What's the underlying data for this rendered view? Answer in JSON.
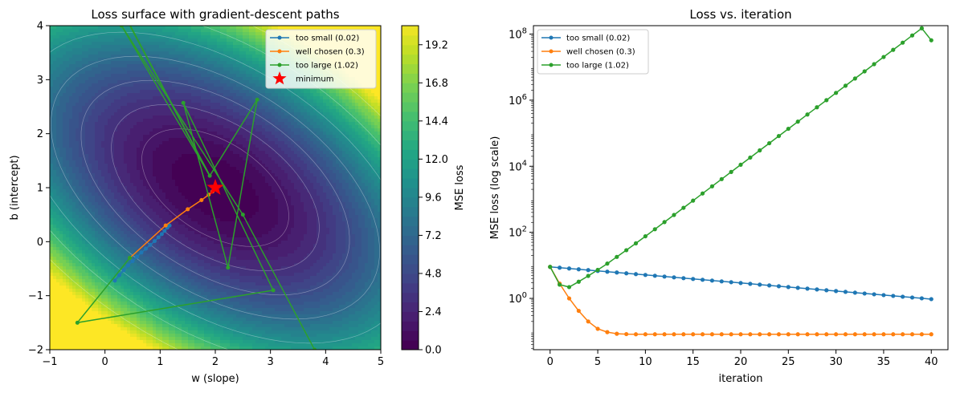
{
  "chart_data": [
    {
      "type": "heatmap",
      "title": "Loss surface with gradient-descent paths",
      "xlabel": "w (slope)",
      "ylabel": "b (intercept)",
      "xlim": [
        -1,
        5
      ],
      "ylim": [
        -2,
        4
      ],
      "xticks": [
        "−1",
        "0",
        "1",
        "2",
        "3",
        "4",
        "5"
      ],
      "yticks": [
        "−2",
        "−1",
        "0",
        "1",
        "2",
        "3",
        "4"
      ],
      "colorbar": {
        "label": "MSE loss",
        "range": [
          0,
          20.4
        ],
        "ticks": [
          "0.0",
          "2.4",
          "4.8",
          "7.2",
          "9.6",
          "12.0",
          "14.4",
          "16.8",
          "19.2"
        ]
      },
      "surface": {
        "minimum": [
          2,
          1
        ],
        "min_loss": 0.08
      },
      "legend_position": "top-right",
      "series": [
        {
          "name": "too small (0.02)",
          "color": "#1f77b4",
          "points": [
            [
              0.18,
              -0.72
            ],
            [
              0.26,
              -0.62
            ],
            [
              0.34,
              -0.53
            ],
            [
              0.42,
              -0.44
            ],
            [
              0.5,
              -0.36
            ],
            [
              0.58,
              -0.28
            ],
            [
              0.66,
              -0.2
            ],
            [
              0.74,
              -0.13
            ],
            [
              0.82,
              -0.06
            ],
            [
              0.9,
              0.01
            ],
            [
              0.97,
              0.08
            ],
            [
              1.03,
              0.14
            ],
            [
              1.08,
              0.2
            ],
            [
              1.13,
              0.26
            ],
            [
              1.17,
              0.3
            ]
          ]
        },
        {
          "name": "well chosen (0.3)",
          "color": "#ff7f0e",
          "points": [
            [
              0.45,
              -0.3
            ],
            [
              1.1,
              0.3
            ],
            [
              1.5,
              0.6
            ],
            [
              1.75,
              0.77
            ],
            [
              1.88,
              0.87
            ],
            [
              1.95,
              0.93
            ],
            [
              1.98,
              0.97
            ],
            [
              2.0,
              0.99
            ],
            [
              2.0,
              1.0
            ]
          ]
        },
        {
          "name": "too large (1.02)",
          "color": "#2ca02c",
          "points": [
            [
              0.45,
              -0.3
            ],
            [
              -0.5,
              -1.5
            ],
            [
              3.05,
              -0.9
            ],
            [
              1.42,
              2.57
            ],
            [
              2.23,
              -0.48
            ],
            [
              2.76,
              2.63
            ],
            [
              1.9,
              1.22
            ],
            [
              0.3,
              4.0
            ],
            [
              2.5,
              0.5
            ],
            [
              3.8,
              -2.0
            ]
          ]
        },
        {
          "name": "minimum",
          "color": "#ff0000",
          "marker": "star",
          "points": [
            [
              2,
              1
            ]
          ]
        }
      ]
    },
    {
      "type": "line",
      "title": "Loss vs. iteration",
      "xlabel": "iteration",
      "ylabel": "MSE loss (log scale)",
      "yscale": "log",
      "xlim": [
        -1.75,
        41.75
      ],
      "ylim": [
        0.028,
        180000000
      ],
      "xticks": [
        0,
        5,
        10,
        15,
        20,
        25,
        30,
        35,
        40
      ],
      "yticks": [
        {
          "value": 1,
          "label": "10^0"
        },
        {
          "value": 100,
          "label": "10^2"
        },
        {
          "value": 10000,
          "label": "10^4"
        },
        {
          "value": 1000000,
          "label": "10^6"
        },
        {
          "value": 100000000,
          "label": "10^8"
        }
      ],
      "legend_position": "top-left",
      "x": [
        0,
        1,
        2,
        3,
        4,
        5,
        6,
        7,
        8,
        9,
        10,
        11,
        12,
        13,
        14,
        15,
        16,
        17,
        18,
        19,
        20,
        21,
        22,
        23,
        24,
        25,
        26,
        27,
        28,
        29,
        30,
        31,
        32,
        33,
        34,
        35,
        36,
        37,
        38,
        39,
        40
      ],
      "series": [
        {
          "name": "too small (0.02)",
          "color": "#1f77b4",
          "start": 9.0,
          "end": 0.95
        },
        {
          "name": "well chosen (0.3)",
          "color": "#ff7f0e",
          "values": [
            9.0,
            2.8,
            1.0,
            0.42,
            0.2,
            0.12,
            0.095,
            0.085,
            0.083,
            0.082,
            0.082,
            0.082,
            0.082,
            0.082,
            0.082,
            0.082,
            0.082,
            0.082,
            0.082,
            0.082,
            0.082,
            0.082,
            0.082,
            0.082,
            0.082,
            0.082,
            0.082,
            0.082,
            0.082,
            0.082,
            0.082,
            0.082,
            0.082,
            0.082,
            0.082,
            0.082,
            0.082,
            0.082,
            0.082,
            0.082,
            0.082
          ]
        },
        {
          "name": "too large (1.02)",
          "color": "#2ca02c",
          "values": [
            9.0,
            2.6,
            2.2,
            3.2,
            4.8,
            7.3,
            11.3,
            18,
            28.8,
            46.5,
            75.9,
            124,
            204,
            335,
            552,
            910,
            1500,
            2470,
            4080,
            6730,
            11100,
            18300,
            30200,
            49800,
            82200,
            136000,
            224000,
            369000,
            609000,
            1000000,
            1660000,
            2740000,
            4520000,
            7450000,
            12300000,
            20300000,
            33400000,
            55100000,
            91000000,
            150000000,
            65000000
          ]
        }
      ]
    }
  ]
}
